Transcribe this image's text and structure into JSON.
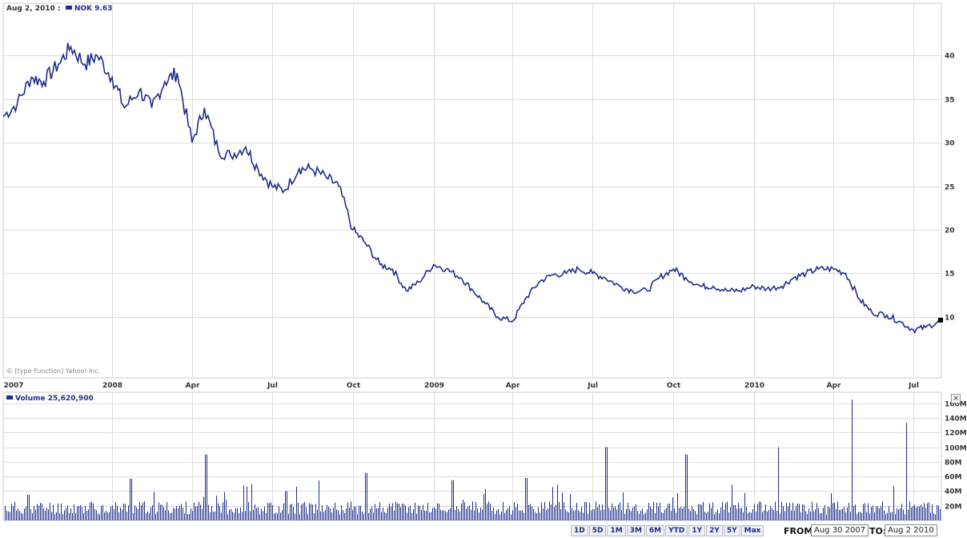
{
  "header": {
    "date": "Aug 2, 2010 :",
    "ticker": "NOK",
    "price": "9.63"
  },
  "volume_header": {
    "label": "Volume",
    "value": "25,620,900"
  },
  "copyright": "© [type Function] Yahoo! Inc.",
  "close_glyph": "×",
  "range_buttons": [
    "1D",
    "5D",
    "1M",
    "3M",
    "6M",
    "YTD",
    "1Y",
    "2Y",
    "5Y",
    "Max"
  ],
  "from_label": "FROM:",
  "from_value": "Aug 30 2007",
  "to_label": "TO:",
  "to_value": "Aug 2 2010",
  "colors": {
    "line": "#1f2d8a",
    "grid": "#dddddd"
  },
  "chart_data": [
    {
      "type": "line",
      "series": [
        {
          "name": "NOK"
        }
      ],
      "x_tick_labels": [
        "2007",
        "2008",
        "Apr",
        "Jul",
        "Oct",
        "2009",
        "Apr",
        "Jul",
        "Oct",
        "2010",
        "Apr",
        "Jul"
      ],
      "y_tick_labels": [
        "10",
        "15",
        "20",
        "25",
        "30",
        "35",
        "40"
      ],
      "ylim": [
        3,
        46
      ],
      "x": [
        "2007-08-30",
        "2007-09-15",
        "2007-10-01",
        "2007-10-15",
        "2007-11-01",
        "2007-11-15",
        "2007-12-01",
        "2007-12-15",
        "2008-01-01",
        "2008-01-15",
        "2008-02-01",
        "2008-02-15",
        "2008-03-01",
        "2008-03-15",
        "2008-04-01",
        "2008-04-15",
        "2008-05-01",
        "2008-05-15",
        "2008-06-01",
        "2008-06-15",
        "2008-07-01",
        "2008-07-15",
        "2008-08-01",
        "2008-08-15",
        "2008-09-01",
        "2008-09-15",
        "2008-10-01",
        "2008-10-15",
        "2008-11-01",
        "2008-11-15",
        "2008-12-01",
        "2008-12-15",
        "2009-01-01",
        "2009-01-15",
        "2009-02-01",
        "2009-02-15",
        "2009-03-01",
        "2009-03-15",
        "2009-04-01",
        "2009-04-15",
        "2009-05-01",
        "2009-05-15",
        "2009-06-01",
        "2009-06-15",
        "2009-07-01",
        "2009-07-15",
        "2009-08-01",
        "2009-08-15",
        "2009-09-01",
        "2009-09-15",
        "2009-10-01",
        "2009-10-15",
        "2009-11-01",
        "2009-11-15",
        "2009-12-01",
        "2009-12-15",
        "2010-01-01",
        "2010-01-15",
        "2010-02-01",
        "2010-02-15",
        "2010-03-01",
        "2010-03-15",
        "2010-04-01",
        "2010-04-15",
        "2010-05-01",
        "2010-05-15",
        "2010-06-01",
        "2010-06-15",
        "2010-07-01",
        "2010-07-15",
        "2010-08-02"
      ],
      "y": [
        33,
        34.5,
        37.5,
        37,
        39,
        41,
        39,
        40,
        37.5,
        34,
        36,
        34,
        37,
        38,
        30,
        34,
        29,
        28.5,
        29.5,
        27,
        25,
        24.5,
        27,
        27,
        26,
        25,
        20,
        18.5,
        16,
        15.5,
        13,
        14,
        16,
        15.5,
        14.5,
        13,
        11.5,
        10,
        9.5,
        12,
        14,
        14.8,
        15,
        15.5,
        15,
        14.5,
        13.5,
        13,
        13,
        14.5,
        15.5,
        14.5,
        13.5,
        13.5,
        13,
        13,
        13.5,
        13.2,
        13.5,
        14.5,
        15,
        15.5,
        15.5,
        15,
        12,
        10.5,
        10.2,
        9.5,
        8.5,
        8.8,
        9.63
      ]
    },
    {
      "type": "bar",
      "series": [
        {
          "name": "Volume"
        }
      ],
      "y_tick_labels": [
        "20M",
        "40M",
        "60M",
        "80M",
        "100M",
        "120M",
        "140M",
        "160M"
      ],
      "ylim": [
        0,
        175
      ],
      "unit": "M",
      "x_range": [
        "2007-08-30",
        "2010-08-02"
      ],
      "baseline": 18,
      "spikes": [
        {
          "date": "2007-09-27",
          "value": 35
        },
        {
          "date": "2008-01-22",
          "value": 57
        },
        {
          "date": "2008-04-17",
          "value": 90
        },
        {
          "date": "2008-07-17",
          "value": 40
        },
        {
          "date": "2008-10-16",
          "value": 65
        },
        {
          "date": "2009-01-22",
          "value": 55
        },
        {
          "date": "2009-04-16",
          "value": 58
        },
        {
          "date": "2009-07-16",
          "value": 100
        },
        {
          "date": "2009-10-15",
          "value": 90
        },
        {
          "date": "2010-01-28",
          "value": 100
        },
        {
          "date": "2010-04-22",
          "value": 165
        },
        {
          "date": "2010-06-23",
          "value": 133
        },
        {
          "date": "2010-08-02",
          "value": 25.6
        }
      ]
    }
  ]
}
